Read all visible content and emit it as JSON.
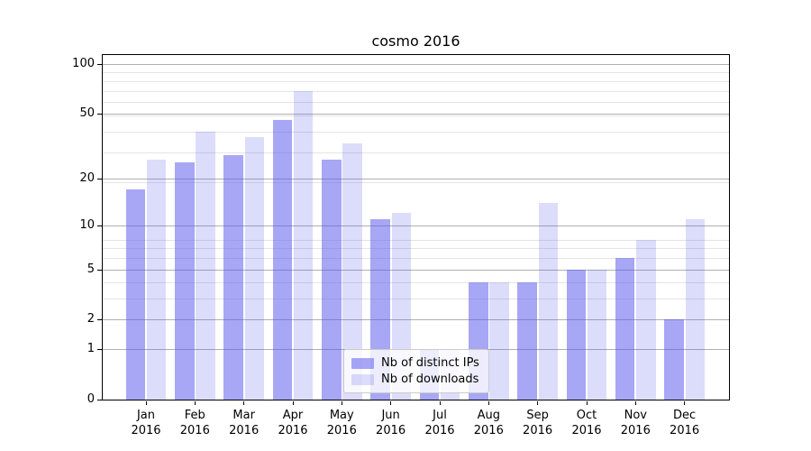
{
  "chart_data": {
    "type": "bar",
    "title": "cosmo 2016",
    "categories": [
      "Jan 2016",
      "Feb 2016",
      "Mar 2016",
      "Apr 2016",
      "May 2016",
      "Jun 2016",
      "Jul 2016",
      "Aug 2016",
      "Sep 2016",
      "Oct 2016",
      "Nov 2016",
      "Dec 2016"
    ],
    "series": [
      {
        "name": "Nb of distinct IPs",
        "color": "rgba(80,80,235,0.5)",
        "values": [
          17,
          25,
          28,
          46,
          26,
          11,
          1,
          4,
          4,
          5,
          6,
          2
        ]
      },
      {
        "name": "Nb of downloads",
        "color": "rgba(80,80,235,0.2)",
        "values": [
          26,
          39,
          36,
          69,
          33,
          12,
          1,
          4,
          14,
          5,
          8,
          11
        ]
      }
    ],
    "y_axis": {
      "scale": "log1p",
      "ticks": [
        0,
        1,
        2,
        5,
        10,
        20,
        50,
        100
      ],
      "minor_gridlines_1plusv": [
        4,
        5,
        7,
        8,
        9,
        20,
        30,
        40,
        50,
        60,
        70,
        80,
        90
      ],
      "max_u": 2.058
    },
    "grid": {
      "major_color": "#b0b0b0",
      "minor_color": "#e4e4e4"
    },
    "legend": {
      "position": "lower center"
    }
  }
}
